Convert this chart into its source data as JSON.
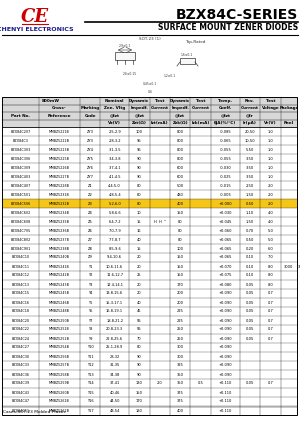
{
  "title": "BZX84C-SERIES",
  "subtitle": "SURFACE MOUNT ZENER DIODES",
  "company_ce": "CE",
  "company_name": "CHENYI ELECTRONICS",
  "footer": "Cases:SOT-23 Molded Plastic",
  "header_line1": [
    "800mW",
    "Nominal",
    "Dynamic",
    "Test",
    "Dynamic",
    "Test",
    "Temp.",
    "Rev.",
    "Test",
    ""
  ],
  "header_line2": [
    "Cross-",
    "Marking",
    "Zen. Vltg",
    "Impedf.",
    "Current",
    "Impedf.",
    "Current",
    "Coeff.",
    "Current",
    "Voltage",
    "Package"
  ],
  "header_line3": [
    "Part No.",
    "Reference",
    "Code",
    "@Izt",
    "@Izt",
    "",
    "@Izt",
    "",
    "@Izt",
    "@Ir",
    "",
    ""
  ],
  "header_line4": [
    "Vz(V)",
    "Zzt(Ω)",
    "Izt(mA)",
    "Zzk(Ω)",
    "Izk(mA)",
    "θJA(mV/°C)",
    "Ir(μA)",
    "Vr(V)",
    "Reel"
  ],
  "highlight_row": 8,
  "rows": [
    [
      "BZX84C2V7",
      "MMBZ5221B",
      "ZY3",
      "2.5-2.9",
      "100",
      "",
      "800",
      "",
      "-0.085",
      "20-50",
      "1.0",
      ""
    ],
    [
      "BZX84C3",
      "MMBZ5222B",
      "ZY3",
      "2.8-3.2",
      "95",
      "",
      "800",
      "",
      "-0.065",
      "10-50",
      "1.0",
      ""
    ],
    [
      "BZX84C3V3",
      "MMBZ5223B",
      "ZY4",
      "3.1-3.5",
      "95",
      "",
      "800",
      "",
      "-0.055",
      "5-50",
      "1.0",
      ""
    ],
    [
      "BZX84C3V6",
      "MMBZ5225B",
      "ZY5",
      "3.4-3.8",
      "90",
      "",
      "800",
      "",
      "-0.055",
      "3-50",
      "1.0",
      ""
    ],
    [
      "BZX84C3V9",
      "MMBZ5226B",
      "ZY6",
      "3.7-4.1",
      "90",
      "",
      "600",
      "",
      "-0.030",
      "3-50",
      "1.0",
      ""
    ],
    [
      "BZX84C4V3",
      "MMBZ5227B",
      "ZY7",
      "4.1-4.5",
      "90",
      "",
      "600",
      "",
      "-0.025",
      "3-50",
      "1.0",
      ""
    ],
    [
      "BZX84C4V7",
      "MMBZ5228B",
      "Z1",
      "4.4-5.0",
      "80",
      "",
      "500",
      "",
      "-0.015",
      "2-50",
      "2.0",
      ""
    ],
    [
      "BZX84C5V1",
      "MMBZ5231B",
      "Z2",
      "4.8-5.4",
      "60",
      "",
      "480",
      "",
      "-0.005",
      "1-50",
      "2.0",
      ""
    ],
    [
      "BZX84C5V6",
      "MMBZ5232B",
      "Z3",
      "5.2-6.0",
      "80",
      "",
      "400",
      "",
      "+0.000",
      "0-50",
      "2.0",
      ""
    ],
    [
      "BZX84C6V2",
      "MMBZ5234B",
      "Z4",
      "5.8-6.6",
      "10",
      "",
      "150",
      "",
      "+0.030",
      "1-10",
      "4.0",
      ""
    ],
    [
      "BZX84C6V8",
      "MMBZ5235B",
      "Z5",
      "6.4-7.2",
      "15",
      "H  H  ᴺ",
      "80",
      "",
      "+0.045",
      "1-50",
      "4.0",
      ""
    ],
    [
      "BZX84C7V5",
      "MMBZ5236B",
      "Z6",
      "7.0-7.9",
      "16",
      "",
      "80",
      "",
      "+0.060",
      "0-70",
      "5.0",
      ""
    ],
    [
      "BZX84C8V2",
      "MMBZ5237B",
      "Z7",
      "7.7-8.7",
      "40",
      "",
      "80",
      "",
      "+0.065",
      "0-50",
      "5.0",
      ""
    ],
    [
      "BZX84C9V1",
      "MMBZ5238B",
      "Z8",
      "8.5-9.6",
      "15",
      "",
      "100",
      "",
      "+0.065",
      "0-20",
      "6.0",
      ""
    ],
    [
      "BZX84C10",
      "MMBZ5240B",
      "Z9",
      "9.4-10.6",
      "20",
      "",
      "150",
      "",
      "+0.065",
      "0-10",
      "7.0",
      ""
    ],
    [
      "BZX84C11",
      "MMBZ5241B",
      "Y1",
      "10.6-11.6",
      "20",
      "",
      "150",
      "",
      "+0.070",
      "0-10",
      "8.0",
      "3000"
    ],
    [
      "BZX84C12",
      "MMBZ5242B",
      "Y2",
      "11.6-12.7",
      "25",
      "",
      "150",
      "",
      "+0.075",
      "0-10",
      "8.0",
      ""
    ],
    [
      "BZX84C13",
      "MMBZ5243B",
      "Y3",
      "12.4-14.1",
      "20",
      "",
      "170",
      "",
      "+0.080",
      "0-05",
      "8.0",
      ""
    ],
    [
      "BZX84C15",
      "MMBZ5245B",
      "Y4",
      "13.8-15.6",
      "20",
      "",
      "200",
      "",
      "+0.090",
      "0-05",
      "0.7",
      ""
    ],
    [
      "BZX84C16",
      "MMBZ5246B",
      "Y5",
      "15.3-17.1",
      "40",
      "",
      "200",
      "",
      "+0.090",
      "0-05",
      "0.7",
      ""
    ],
    [
      "BZX84C18",
      "MMBZ5248B",
      "Y6",
      "16.8-19.1",
      "45",
      "",
      "225",
      "",
      "+0.090",
      "0-05",
      "0.7",
      ""
    ],
    [
      "BZX84C20",
      "MMBZ5250B",
      "Y7",
      "18.8-21.2",
      "55",
      "",
      "225",
      "",
      "+0.090",
      "0-05",
      "0.7",
      ""
    ],
    [
      "BZX84C22",
      "MMBZ5251B",
      "Y8",
      "20.8-23.3",
      "55",
      "",
      "250",
      "",
      "+0.090",
      "0-05",
      "0.7",
      ""
    ],
    [
      "BZX84C24",
      "MMBZ5252B",
      "Y9",
      "22.8-25.6",
      "70",
      "",
      "250",
      "",
      "+0.090",
      "0-05",
      "0.7",
      ""
    ],
    [
      "BZX84C27",
      "MMBZ5254B",
      "Y10",
      "25.1-28.9",
      "80",
      "",
      "300",
      "",
      "+0.090",
      "",
      "",
      ""
    ],
    [
      "BZX84C30",
      "MMBZ5256B",
      "Y11",
      "28-32",
      "90",
      "",
      "300",
      "",
      "+0.090",
      "",
      "",
      ""
    ],
    [
      "BZX84C33",
      "MMBZ5257B",
      "Y12",
      "31-35",
      "90",
      "",
      "325",
      "",
      "+0.090",
      "",
      "",
      ""
    ],
    [
      "BZX84C36",
      "MMBZ5258B",
      "Y13",
      "34-38",
      "90",
      "",
      "350",
      "",
      "+0.090",
      "",
      "",
      ""
    ],
    [
      "BZX84C39",
      "MMBZ5259B",
      "Y14",
      "37-41",
      "130",
      "2.0",
      "350",
      "0.5",
      "+0.110",
      "0-05",
      "0.7",
      ""
    ],
    [
      "BZX84C43",
      "MMBZ5260B",
      "Y15",
      "40-46",
      "150",
      "",
      "375",
      "",
      "+0.110",
      "",
      "",
      ""
    ],
    [
      "BZX84C47",
      "MMBZ5261B",
      "Y16",
      "44-50",
      "170",
      "",
      "375",
      "",
      "+0.110",
      "",
      "",
      ""
    ],
    [
      "BZX84C51",
      "MMBZ5262B",
      "Y17",
      "48-54",
      "180",
      "",
      "400",
      "",
      "+0.110",
      "",
      "",
      ""
    ]
  ],
  "bg_color": "#ffffff",
  "highlight_color": "#f5c518",
  "company_color": "#cc0000",
  "col_widths_rel": [
    9,
    10,
    5,
    7,
    5,
    5,
    5,
    5,
    7,
    5,
    5,
    4
  ]
}
